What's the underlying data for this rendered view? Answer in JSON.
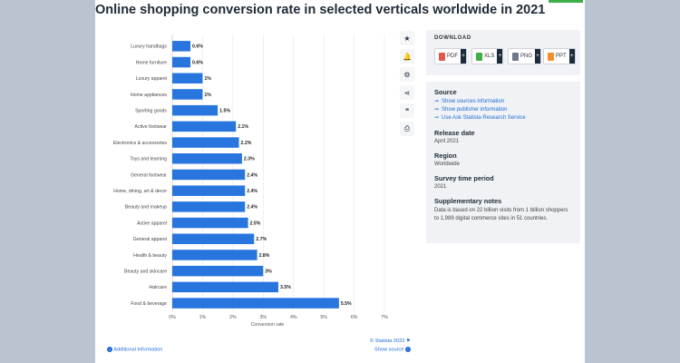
{
  "page": {
    "title": "Online shopping conversion rate in selected verticals worldwide in 2021"
  },
  "toolbar": {
    "icons": [
      "star-icon",
      "bell-icon",
      "gear-icon",
      "share-icon",
      "quote-icon",
      "print-icon"
    ],
    "glyphs": [
      "★",
      "🔔",
      "⚙",
      "⋖",
      "❝",
      "⎙"
    ]
  },
  "download": {
    "title": "DOWNLOAD",
    "buttons": [
      {
        "label": "PDF",
        "color": "#e2574c"
      },
      {
        "label": "XLS",
        "color": "#3fae49"
      },
      {
        "label": "PNG",
        "color": "#6c7a89"
      },
      {
        "label": "PPT",
        "color": "#f28e2b"
      }
    ],
    "plus": "+"
  },
  "info": {
    "source_heading": "Source",
    "source_links": [
      "Show sources information",
      "Show publisher information",
      "Use Ask Statista Research Service"
    ],
    "release_heading": "Release date",
    "release_value": "April 2021",
    "region_heading": "Region",
    "region_value": "Worldwide",
    "survey_heading": "Survey time period",
    "survey_value": "2021",
    "notes_heading": "Supplementary notes",
    "notes_text": "Data is based on 22 billion visits from 1 billion shoppers to 1,989 digital commerce sites in 51 countries."
  },
  "footer": {
    "additional_info": "Additional Information",
    "copyright": "© Statista 2022",
    "show_source": "Show source"
  },
  "colors": {
    "bar": "#2876dd",
    "link": "#1f6bd8",
    "background": "#b9c4d0"
  },
  "chart_data": {
    "type": "bar",
    "orientation": "horizontal",
    "title": "Online shopping conversion rate in selected verticals worldwide in 2021",
    "xlabel": "Conversion rate",
    "ylabel": "",
    "xlim": [
      0,
      7
    ],
    "xticks": [
      "0%",
      "1%",
      "2%",
      "3%",
      "4%",
      "5%",
      "6%",
      "7%"
    ],
    "grid": true,
    "categories": [
      "Luxury handbags",
      "Home furniture",
      "Luxury apparel",
      "Home appliances",
      "Sporting goods",
      "Active footwear",
      "Electronics & accessories",
      "Toys and learning",
      "General footwear",
      "Home, dining, art & decor",
      "Beauty and makeup",
      "Active apparel",
      "General apparel",
      "Health & beauty",
      "Beauty and skincare",
      "Haircare",
      "Food & beverage"
    ],
    "values": [
      0.6,
      0.6,
      1,
      1,
      1.5,
      2.1,
      2.2,
      2.3,
      2.4,
      2.4,
      2.4,
      2.5,
      2.7,
      2.8,
      3,
      3.5,
      5.5
    ],
    "value_labels": [
      "0.6%",
      "0.6%",
      "1%",
      "1%",
      "1.5%",
      "2.1%",
      "2.2%",
      "2.3%",
      "2.4%",
      "2.4%",
      "2.4%",
      "2.5%",
      "2.7%",
      "2.8%",
      "3%",
      "3.5%",
      "5.5%"
    ]
  }
}
